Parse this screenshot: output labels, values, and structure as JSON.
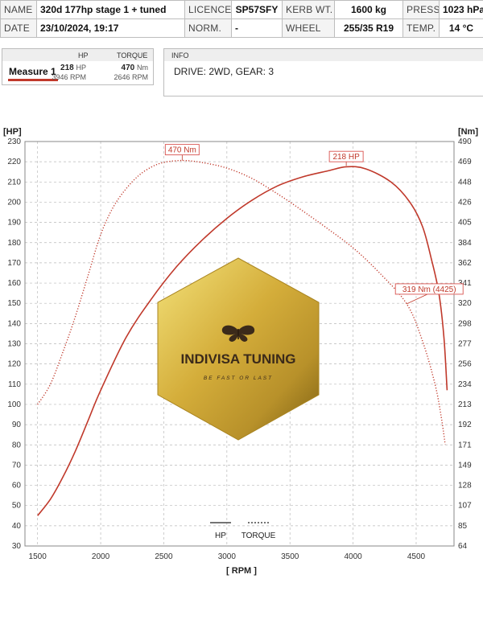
{
  "header": {
    "row1": {
      "name_label": "NAME",
      "name_value": "320d 177hp stage 1 + tuned",
      "licence_label": "LICENCE",
      "licence_value": "SP57SFY",
      "kerb_label": "KERB WT.",
      "kerb_value": "1600 kg",
      "press_label": "PRESS.",
      "press_value": "1023 hPa"
    },
    "row2": {
      "date_label": "DATE",
      "date_value": "23/10/2024, 19:17",
      "norm_label": "NORM.",
      "norm_value": "-",
      "wheel_label": "WHEEL",
      "wheel_value": "255/35 R19",
      "temp_label": "TEMP.",
      "temp_value": "14 °C"
    }
  },
  "measure": {
    "hp_header": "HP",
    "torque_header": "TORQUE",
    "name": "Measure 1",
    "hp_value": "218",
    "hp_unit": "HP",
    "hp_rpm": "3946 RPM",
    "torque_value": "470",
    "torque_unit": "Nm",
    "torque_rpm": "2646 RPM"
  },
  "info": {
    "header": "INFO",
    "text": "DRIVE: 2WD,  GEAR: 3"
  },
  "watermark": {
    "title": "INDIVISA TUNING",
    "tagline": "BE FAST OR LAST",
    "icon": "butterfly-icon"
  },
  "colors": {
    "curve": "#c0392b",
    "label_border": "#d9534f",
    "grid": "#b9b9b9",
    "gold": "#c9a227"
  },
  "chart_data": {
    "type": "line",
    "xlabel": "[ RPM ]",
    "ylabel_left": "[HP]",
    "ylabel_right": "[Nm]",
    "xlim": [
      1400,
      4800
    ],
    "ylim_left": [
      30,
      230
    ],
    "ylim_right": [
      64,
      490
    ],
    "x_ticks": [
      1500,
      2000,
      2500,
      3000,
      3500,
      4000,
      4500
    ],
    "y_ticks_left": [
      30,
      40,
      50,
      60,
      70,
      80,
      90,
      100,
      110,
      120,
      130,
      140,
      150,
      160,
      170,
      180,
      190,
      200,
      210,
      220,
      230
    ],
    "y_ticks_right": [
      64,
      85,
      107,
      128,
      149,
      171,
      192,
      213,
      234,
      256,
      277,
      298,
      320,
      341,
      362,
      384,
      405,
      426,
      448,
      469,
      490
    ],
    "grid": true,
    "legend": [
      {
        "name": "HP",
        "style": "solid"
      },
      {
        "name": "TORQUE",
        "style": "dotted"
      }
    ],
    "series": [
      {
        "name": "HP",
        "axis": "left",
        "style": "solid",
        "x": [
          1500,
          1600,
          1700,
          1800,
          1900,
          2000,
          2200,
          2400,
          2600,
          2800,
          3000,
          3200,
          3400,
          3600,
          3800,
          3946,
          4100,
          4300,
          4450,
          4550,
          4620,
          4680,
          4720,
          4745
        ],
        "y": [
          45,
          53,
          64,
          77,
          92,
          107,
          133,
          152,
          168,
          181,
          192,
          201,
          208,
          212.5,
          215.5,
          217.5,
          216.5,
          210,
          200,
          188,
          172,
          155,
          133,
          107
        ]
      },
      {
        "name": "TORQUE",
        "axis": "right",
        "style": "dotted",
        "x": [
          1500,
          1600,
          1700,
          1800,
          1900,
          2000,
          2100,
          2200,
          2300,
          2400,
          2500,
          2646,
          2800,
          3000,
          3200,
          3400,
          3600,
          3800,
          4000,
          4200,
          4425,
          4550,
          4650,
          4700,
          4730
        ],
        "y": [
          213,
          234,
          268,
          306,
          349,
          392,
          421,
          440,
          454,
          463,
          468,
          470,
          468,
          462,
          451,
          435,
          417,
          398,
          378,
          353,
          319,
          280,
          234,
          199,
          171
        ]
      }
    ],
    "annotations": [
      {
        "text": "470 Nm",
        "series": "TORQUE",
        "x": 2646,
        "y": 470
      },
      {
        "text": "218 HP",
        "series": "HP",
        "x": 3946,
        "y": 218
      },
      {
        "text": "319 Nm (4425)",
        "series": "TORQUE",
        "x": 4425,
        "y": 319
      }
    ]
  }
}
